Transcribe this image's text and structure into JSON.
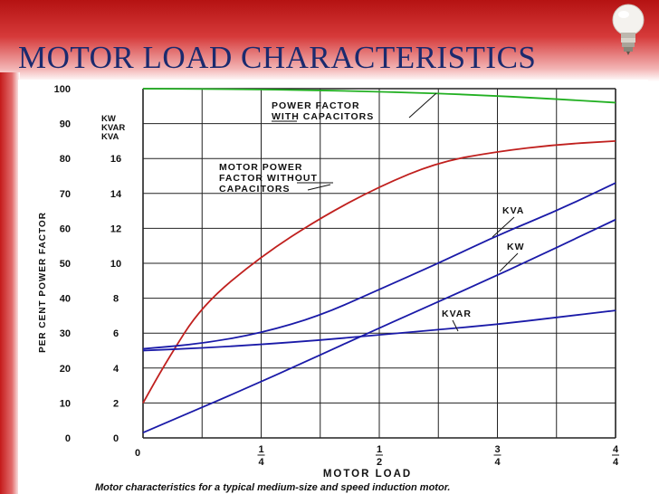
{
  "slide": {
    "title": "MOTOR LOAD CHARACTERISTICS"
  },
  "chart_data": {
    "type": "line",
    "xlabel": "MOTOR LOAD",
    "ylabel": "PER CENT POWER FACTOR",
    "caption": "Motor characteristics for a typical medium-size and speed induction motor.",
    "x_ticks": [
      "0",
      "1/4",
      "1/2",
      "3/4",
      "4/4"
    ],
    "xlim": [
      0,
      1
    ],
    "left_axis": {
      "ticks": [
        "0",
        "10",
        "20",
        "30",
        "40",
        "50",
        "60",
        "70",
        "80",
        "90",
        "100"
      ],
      "ylim": [
        0,
        100
      ]
    },
    "right_axis": {
      "header": [
        "KW",
        "KVAR",
        "KVA"
      ],
      "ticks": [
        "0",
        "2",
        "4",
        "6",
        "8",
        "10",
        "12",
        "14",
        "16"
      ],
      "ylim": [
        0,
        20
      ]
    },
    "series": [
      {
        "name": "POWER FACTOR WITH CAPACITORS",
        "axis": "left",
        "color": "#22b022",
        "x": [
          0,
          0.25,
          0.5,
          0.75,
          1.0
        ],
        "y": [
          100,
          99.8,
          99.2,
          98,
          96
        ]
      },
      {
        "name": "MOTOR POWER FACTOR WITHOUT CAPACITORS",
        "axis": "left",
        "color": "#c0201e",
        "x": [
          0,
          0.05,
          0.125,
          0.25,
          0.375,
          0.5,
          0.625,
          0.75,
          0.875,
          1.0
        ],
        "y": [
          10,
          22,
          38,
          52,
          63,
          72,
          79,
          82,
          84,
          85
        ]
      },
      {
        "name": "KVA",
        "axis": "right",
        "color": "#1a1aa8",
        "x": [
          0,
          0.125,
          0.25,
          0.375,
          0.5,
          0.625,
          0.75,
          0.875,
          1.0
        ],
        "y": [
          5.1,
          5.4,
          6.0,
          7.0,
          8.5,
          10.0,
          11.6,
          13.0,
          14.6
        ]
      },
      {
        "name": "KW",
        "axis": "right",
        "color": "#1a1aa8",
        "x": [
          0,
          0.25,
          0.5,
          0.75,
          1.0
        ],
        "y": [
          0.3,
          3.2,
          6.3,
          9.3,
          12.5
        ]
      },
      {
        "name": "KVAR",
        "axis": "right",
        "color": "#1a1aa8",
        "x": [
          0,
          0.125,
          0.25,
          0.375,
          0.5,
          0.625,
          0.75,
          0.875,
          1.0
        ],
        "y": [
          5.0,
          5.15,
          5.35,
          5.6,
          5.9,
          6.2,
          6.5,
          6.9,
          7.3
        ]
      }
    ],
    "annotations": {
      "pf_with": [
        "POWER FACTOR",
        "WITH CAPACITORS"
      ],
      "pf_without": [
        "MOTOR POWER",
        "FACTOR WITHOUT",
        "CAPACITORS"
      ],
      "kva": "KVA",
      "kw": "KW",
      "kvar": "KVAR"
    }
  }
}
